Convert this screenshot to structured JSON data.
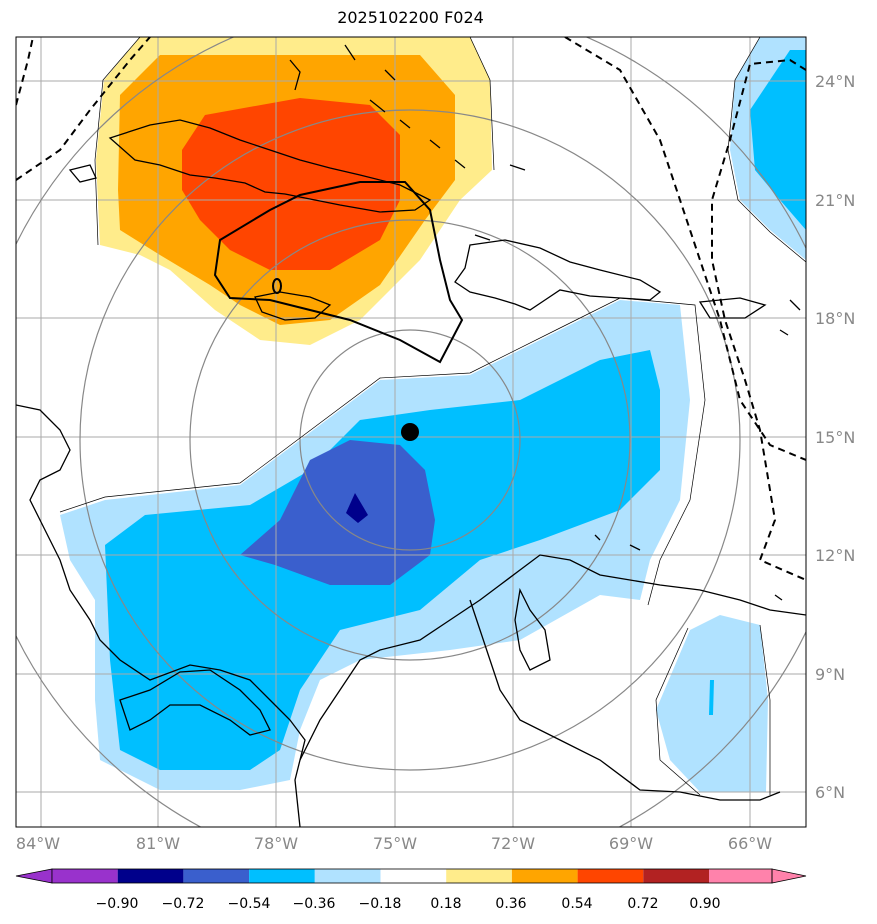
{
  "title": "2025102200 F024",
  "map": {
    "lat_labels": [
      "24°N",
      "21°N",
      "18°N",
      "15°N",
      "12°N",
      "9°N",
      "6°N"
    ],
    "lon_labels": [
      "84°W",
      "81°W",
      "78°W",
      "75°W",
      "72°W",
      "69°W",
      "66°W"
    ],
    "storm_center": {
      "lon": -74.6,
      "lat": 15.1
    },
    "contour_label": "0"
  },
  "colorbar": {
    "levels": [
      "−0.90",
      "−0.72",
      "−0.54",
      "−0.36",
      "−0.18",
      "0.18",
      "0.36",
      "0.54",
      "0.72",
      "0.90"
    ],
    "colors": [
      "#9932CC",
      "#00008B",
      "#3A5FCD",
      "#00BFFF",
      "#B0E2FF",
      "#FFFFFF",
      "#FFEC8B",
      "#FFA500",
      "#FF4500",
      "#B22222",
      "#FF82AB"
    ]
  },
  "colors": {
    "blue_light": "#B0E2FF",
    "blue_mid": "#00BFFF",
    "blue_dark": "#3A5FCD",
    "navy": "#00008B",
    "yellow": "#FFEC8B",
    "orange": "#FFA500",
    "red_orange": "#FF4500",
    "grid": "#AAAAAA",
    "range_ring": "#888888"
  }
}
